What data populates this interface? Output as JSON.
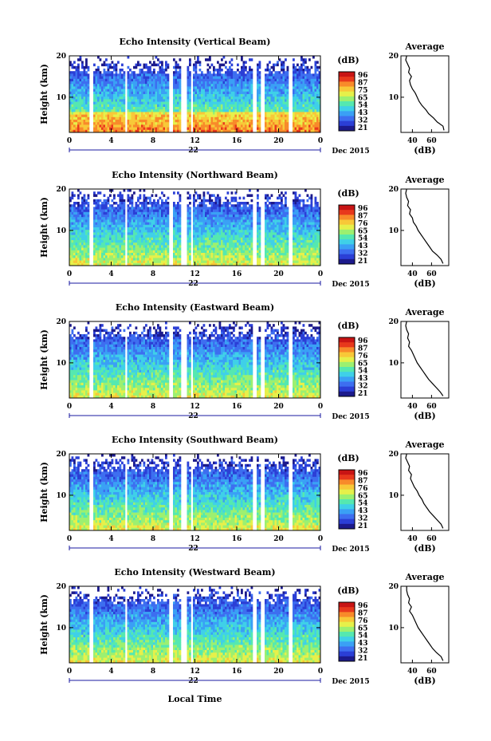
{
  "figure": {
    "xlabel": "Local Time",
    "date_label": "Dec 2015",
    "day_label": "22",
    "y_label": "Height (km)",
    "unit_label": "(dB)",
    "average_title": "Average",
    "average_xlabel": "(dB)"
  },
  "colors": {
    "colormap": [
      "#1c1a8c",
      "#2b3fd6",
      "#3d6ef0",
      "#3aa0f5",
      "#3fd0e8",
      "#55e8b0",
      "#9cf070",
      "#e6f04a",
      "#f8c838",
      "#f88a2a",
      "#e8381c",
      "#c81414"
    ],
    "axis": "#000000",
    "time_bar": "#1a1aa0"
  },
  "chart_data": [
    {
      "type": "heatmap",
      "title": "Echo Intensity (Vertical Beam)",
      "x_ticks": [
        "0",
        "4",
        "8",
        "12",
        "16",
        "20",
        "0"
      ],
      "y_ticks": [
        "20",
        "10"
      ],
      "xlim": [
        0,
        24
      ],
      "ylim": [
        1.5,
        20
      ],
      "colorbar_ticks": [
        "96",
        "87",
        "75",
        "65",
        "54",
        "43",
        "32",
        "21"
      ],
      "gaps": [
        [
          2.0,
          2.2
        ],
        [
          5.4,
          5.6
        ],
        [
          9.6,
          9.9
        ],
        [
          10.7,
          11.2
        ],
        [
          11.7,
          11.9
        ],
        [
          17.6,
          17.9
        ],
        [
          18.3,
          18.6
        ],
        [
          21.0,
          21.4
        ]
      ],
      "average_profile": {
        "x_ticks": [
          "40",
          "60"
        ],
        "y_ticks": [
          "20",
          "10"
        ],
        "xlim": [
          28,
          78
        ],
        "ylim": [
          1.5,
          20
        ],
        "height": [
          2,
          3,
          4,
          5,
          6,
          7,
          8,
          9,
          10,
          11,
          12,
          13,
          14,
          15,
          16,
          17,
          18,
          19,
          20
        ],
        "value": [
          73,
          72,
          66,
          62,
          57,
          54,
          50,
          47,
          45,
          43,
          40,
          38,
          37,
          39,
          36,
          37,
          35,
          33,
          34
        ]
      }
    },
    {
      "type": "heatmap",
      "title": "Echo Intensity (Northward Beam)",
      "x_ticks": [
        "0",
        "4",
        "8",
        "12",
        "16",
        "20",
        "0"
      ],
      "y_ticks": [
        "20",
        "10"
      ],
      "xlim": [
        0,
        24
      ],
      "ylim": [
        1.5,
        20
      ],
      "colorbar_ticks": [
        "96",
        "87",
        "76",
        "65",
        "54",
        "43",
        "32",
        "21"
      ],
      "gaps": [
        [
          2.0,
          2.2
        ],
        [
          5.4,
          5.6
        ],
        [
          9.6,
          9.9
        ],
        [
          10.7,
          11.2
        ],
        [
          11.7,
          11.9
        ],
        [
          17.6,
          17.9
        ],
        [
          18.3,
          18.6
        ],
        [
          21.0,
          21.4
        ]
      ],
      "average_profile": {
        "x_ticks": [
          "40",
          "60"
        ],
        "y_ticks": [
          "20",
          "10"
        ],
        "xlim": [
          28,
          78
        ],
        "ylim": [
          1.5,
          20
        ],
        "height": [
          2,
          3,
          4,
          5,
          6,
          7,
          8,
          9,
          10,
          11,
          12,
          13,
          14,
          15,
          16,
          17,
          18,
          19,
          20
        ],
        "value": [
          72,
          70,
          66,
          61,
          58,
          55,
          52,
          49,
          46,
          44,
          41,
          40,
          37,
          38,
          35,
          36,
          34,
          33,
          34
        ]
      }
    },
    {
      "type": "heatmap",
      "title": "Echo Intensity (Eastward Beam)",
      "x_ticks": [
        "0",
        "4",
        "8",
        "12",
        "16",
        "20",
        "0"
      ],
      "y_ticks": [
        "20",
        "10"
      ],
      "xlim": [
        0,
        24
      ],
      "ylim": [
        1.5,
        20
      ],
      "colorbar_ticks": [
        "96",
        "87",
        "76",
        "65",
        "54",
        "43",
        "32",
        "21"
      ],
      "gaps": [
        [
          2.0,
          2.2
        ],
        [
          5.4,
          5.6
        ],
        [
          9.6,
          9.9
        ],
        [
          10.7,
          11.2
        ],
        [
          11.7,
          11.9
        ],
        [
          17.6,
          17.9
        ],
        [
          18.3,
          18.6
        ],
        [
          21.0,
          21.4
        ]
      ],
      "average_profile": {
        "x_ticks": [
          "40",
          "60"
        ],
        "y_ticks": [
          "20",
          "10"
        ],
        "xlim": [
          28,
          78
        ],
        "ylim": [
          1.5,
          20
        ],
        "height": [
          2,
          3,
          4,
          5,
          6,
          7,
          8,
          9,
          10,
          11,
          12,
          13,
          14,
          15,
          16,
          17,
          18,
          19,
          20
        ],
        "value": [
          72,
          69,
          65,
          61,
          57,
          54,
          51,
          48,
          45,
          43,
          41,
          39,
          36,
          37,
          35,
          36,
          34,
          33,
          34
        ]
      }
    },
    {
      "type": "heatmap",
      "title": "Echo Intensity (Southward Beam)",
      "x_ticks": [
        "0",
        "4",
        "8",
        "12",
        "16",
        "20",
        "0"
      ],
      "y_ticks": [
        "20",
        "10"
      ],
      "xlim": [
        0,
        24
      ],
      "ylim": [
        1.5,
        20
      ],
      "colorbar_ticks": [
        "96",
        "87",
        "76",
        "65",
        "54",
        "43",
        "32",
        "21"
      ],
      "gaps": [
        [
          2.0,
          2.2
        ],
        [
          5.4,
          5.6
        ],
        [
          9.6,
          9.9
        ],
        [
          10.7,
          11.2
        ],
        [
          11.7,
          11.9
        ],
        [
          17.6,
          17.9
        ],
        [
          18.3,
          18.6
        ],
        [
          21.0,
          21.4
        ]
      ],
      "average_profile": {
        "x_ticks": [
          "40",
          "60"
        ],
        "y_ticks": [
          "20",
          "10"
        ],
        "xlim": [
          28,
          78
        ],
        "ylim": [
          1.5,
          20
        ],
        "height": [
          2,
          3,
          4,
          5,
          6,
          7,
          8,
          9,
          10,
          11,
          12,
          13,
          14,
          15,
          16,
          17,
          18,
          19,
          20
        ],
        "value": [
          72,
          70,
          66,
          62,
          58,
          55,
          52,
          50,
          47,
          45,
          42,
          40,
          38,
          39,
          36,
          37,
          35,
          33,
          34
        ]
      }
    },
    {
      "type": "heatmap",
      "title": "Echo Intensity (Westward Beam)",
      "x_ticks": [
        "0",
        "4",
        "8",
        "12",
        "16",
        "20",
        "0"
      ],
      "y_ticks": [
        "20",
        "10"
      ],
      "xlim": [
        0,
        24
      ],
      "ylim": [
        1.5,
        20
      ],
      "colorbar_ticks": [
        "96",
        "87",
        "76",
        "65",
        "54",
        "43",
        "32",
        "21"
      ],
      "gaps": [
        [
          2.0,
          2.2
        ],
        [
          5.4,
          5.6
        ],
        [
          9.6,
          9.9
        ],
        [
          10.7,
          11.2
        ],
        [
          11.7,
          11.9
        ],
        [
          17.6,
          17.9
        ],
        [
          18.3,
          18.6
        ],
        [
          21.0,
          21.4
        ]
      ],
      "average_profile": {
        "x_ticks": [
          "40",
          "60"
        ],
        "y_ticks": [
          "20",
          "10"
        ],
        "xlim": [
          28,
          78
        ],
        "ylim": [
          1.5,
          20
        ],
        "height": [
          2,
          3,
          4,
          5,
          6,
          7,
          8,
          9,
          10,
          11,
          12,
          13,
          14,
          15,
          16,
          17,
          18,
          19,
          20
        ],
        "value": [
          72,
          70,
          65,
          61,
          58,
          55,
          52,
          49,
          46,
          44,
          42,
          40,
          37,
          39,
          36,
          37,
          35,
          34,
          34
        ]
      }
    }
  ]
}
